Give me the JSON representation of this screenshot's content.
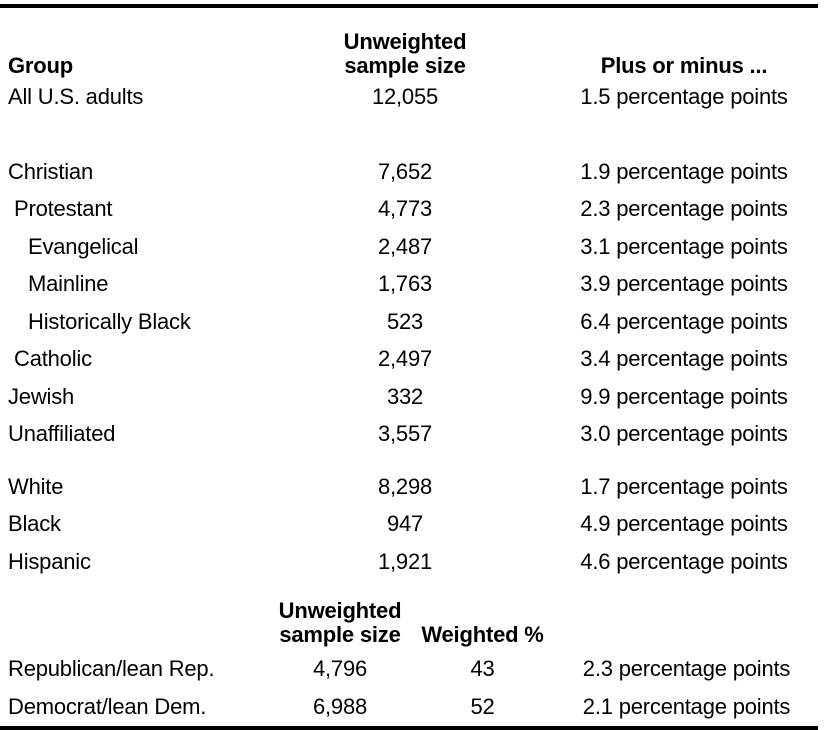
{
  "colors": {
    "text": "#000000",
    "rule": "#000000",
    "background": "#ffffff"
  },
  "header": {
    "group": "Group",
    "unweighted_line1": "Unweighted",
    "unweighted_line2": "sample size",
    "plus_minus": "Plus or minus ..."
  },
  "party_header": {
    "unweighted_line1": "Unweighted",
    "unweighted_line2": "sample size",
    "weighted": "Weighted %"
  },
  "chart_data": {
    "type": "table",
    "columns": [
      "Group",
      "Unweighted sample size",
      "Plus or minus ..."
    ],
    "rows": [
      {
        "label": "All U.S. adults",
        "indent": 0,
        "n": "12,055",
        "moe": "1.5 percentage points"
      },
      {
        "label": "Christian",
        "indent": 0,
        "n": "7,652",
        "moe": "1.9 percentage points"
      },
      {
        "label": "Protestant",
        "indent": 1,
        "n": "4,773",
        "moe": "2.3 percentage points"
      },
      {
        "label": "Evangelical",
        "indent": 2,
        "n": "2,487",
        "moe": "3.1 percentage points"
      },
      {
        "label": "Mainline",
        "indent": 2,
        "n": "1,763",
        "moe": "3.9 percentage points"
      },
      {
        "label": "Historically Black",
        "indent": 2,
        "n": "523",
        "moe": "6.4 percentage points"
      },
      {
        "label": "Catholic",
        "indent": 1,
        "n": "2,497",
        "moe": "3.4 percentage points"
      },
      {
        "label": "Jewish",
        "indent": 0,
        "n": "332",
        "moe": "9.9 percentage points"
      },
      {
        "label": "Unaffiliated",
        "indent": 0,
        "n": "3,557",
        "moe": "3.0 percentage points"
      },
      {
        "label": "White",
        "indent": 0,
        "n": "8,298",
        "moe": "1.7 percentage points"
      },
      {
        "label": "Black",
        "indent": 0,
        "n": "947",
        "moe": "4.9 percentage points"
      },
      {
        "label": "Hispanic",
        "indent": 0,
        "n": "1,921",
        "moe": "4.6 percentage points"
      }
    ],
    "party_columns": [
      "Group",
      "Unweighted sample size",
      "Weighted %",
      "Plus or minus ..."
    ],
    "party_rows": [
      {
        "label": "Republican/lean Rep.",
        "n": "4,796",
        "weighted": "43",
        "moe": "2.3 percentage points"
      },
      {
        "label": "Democrat/lean Dem.",
        "n": "6,988",
        "weighted": "52",
        "moe": "2.1 percentage points"
      }
    ]
  }
}
